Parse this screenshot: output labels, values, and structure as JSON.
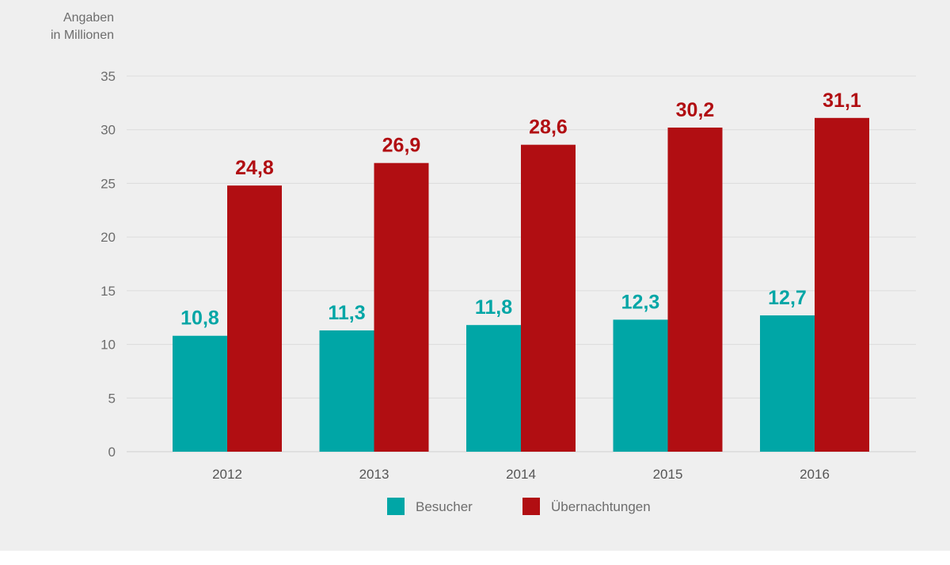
{
  "unit_label": {
    "line1": "Angaben",
    "line2": "in Millionen"
  },
  "chart_data": {
    "type": "bar",
    "categories": [
      "2012",
      "2013",
      "2014",
      "2015",
      "2016"
    ],
    "series": [
      {
        "name": "Besucher",
        "color": "#00a6a6",
        "values": [
          10.8,
          11.3,
          11.8,
          12.3,
          12.7
        ],
        "labels": [
          "10,8",
          "11,3",
          "11,8",
          "12,3",
          "12,7"
        ]
      },
      {
        "name": "Übernachtungen",
        "color": "#b10e12",
        "values": [
          24.8,
          26.9,
          28.6,
          30.2,
          31.1
        ],
        "labels": [
          "24,8",
          "26,9",
          "28,6",
          "30,2",
          "31,1"
        ]
      }
    ],
    "ylim": [
      0,
      35
    ],
    "yticks": [
      0,
      5,
      10,
      15,
      20,
      25,
      30,
      35
    ],
    "grid": true,
    "legend_position": "bottom"
  }
}
